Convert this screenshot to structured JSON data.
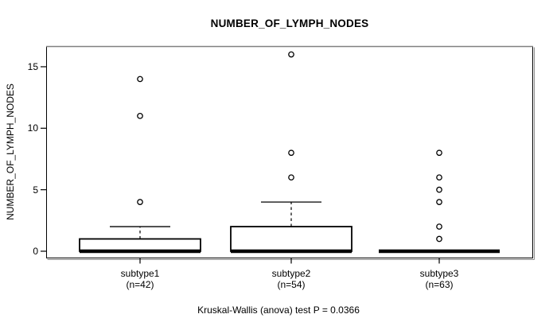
{
  "figure": {
    "title": "NUMBER_OF_LYMPH_NODES",
    "ylabel": "NUMBER_OF_LYMPH_NODES",
    "caption": "Kruskal-Wallis (anova) test P = 0.0366"
  },
  "colors": {
    "background": "#ffffff",
    "box_fill": "#ffffff",
    "line": "#000000",
    "frame_top": "#808080",
    "frame_shadow": "#909090"
  },
  "chart_data": {
    "type": "boxplot",
    "title": "NUMBER_OF_LYMPH_NODES",
    "xlabel": "",
    "ylabel": "NUMBER_OF_LYMPH_NODES",
    "annotation": "Kruskal-Wallis (anova) test P = 0.0366",
    "ylim": [
      0,
      16
    ],
    "yticks": [
      0,
      5,
      10,
      15
    ],
    "grid": false,
    "legend": null,
    "groups": [
      {
        "label": "subtype1",
        "sublabel": "(n=42)",
        "n": 42,
        "whisker_low": 0,
        "q1": 0,
        "median": 0,
        "q3": 1,
        "whisker_high": 2,
        "outliers": [
          4,
          11,
          14
        ]
      },
      {
        "label": "subtype2",
        "sublabel": "(n=54)",
        "n": 54,
        "whisker_low": 0,
        "q1": 0,
        "median": 0,
        "q3": 2,
        "whisker_high": 4,
        "outliers": [
          6,
          8,
          16
        ]
      },
      {
        "label": "subtype3",
        "sublabel": "(n=63)",
        "n": 63,
        "whisker_low": 0,
        "q1": 0,
        "median": 0,
        "q3": 0,
        "whisker_high": 0,
        "outliers": [
          1,
          2,
          4,
          5,
          6,
          8
        ]
      }
    ]
  }
}
